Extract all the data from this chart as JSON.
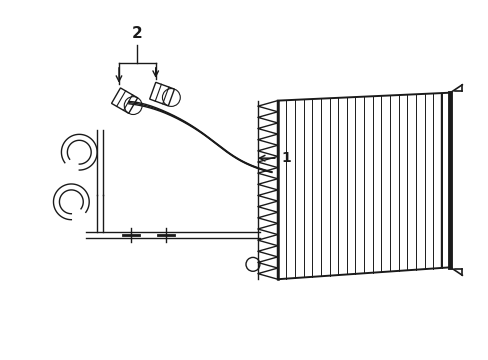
{
  "bg_color": "#ffffff",
  "line_color": "#1a1a1a",
  "label_1": "1",
  "label_2": "2"
}
